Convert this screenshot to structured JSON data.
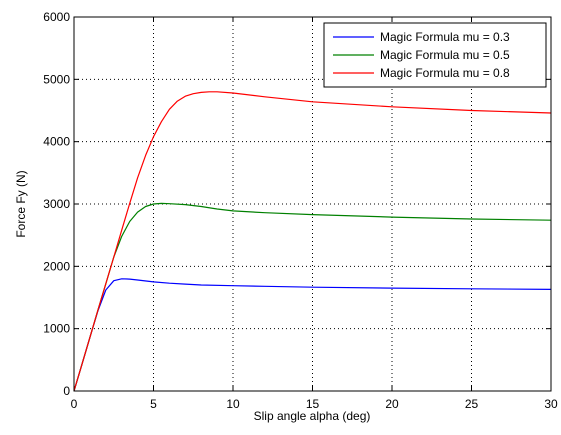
{
  "colors": {
    "background": "#ffffff",
    "axes": "#000000",
    "grid": "#000000"
  },
  "chart_data": {
    "type": "line",
    "title": "",
    "xlabel": "Slip angle alpha (deg)",
    "ylabel": "Force Fy (N)",
    "xlim": [
      0,
      30
    ],
    "ylim": [
      0,
      6000
    ],
    "xticks": [
      0,
      5,
      10,
      15,
      20,
      25,
      30
    ],
    "yticks": [
      0,
      1000,
      2000,
      3000,
      4000,
      5000,
      6000
    ],
    "xtick_labels": [
      "0",
      "5",
      "10",
      "15",
      "20",
      "25",
      "30"
    ],
    "ytick_labels": [
      "0",
      "1000",
      "2000",
      "3000",
      "4000",
      "5000",
      "6000"
    ],
    "grid": true,
    "grid_style": "dotted",
    "legend_position": "top-right",
    "series": [
      {
        "name": "Magic Formula mu = 0.3",
        "color": "#0000ff",
        "x": [
          0,
          0.5,
          1,
          1.5,
          2,
          2.5,
          3,
          3.5,
          4,
          5,
          6,
          7,
          8,
          10,
          12,
          15,
          20,
          25,
          30
        ],
        "y": [
          0,
          430,
          860,
          1280,
          1620,
          1770,
          1800,
          1795,
          1780,
          1750,
          1730,
          1715,
          1700,
          1690,
          1680,
          1665,
          1650,
          1640,
          1630
        ]
      },
      {
        "name": "Magic Formula mu = 0.5",
        "color": "#008000",
        "x": [
          0,
          0.5,
          1,
          1.5,
          2,
          2.5,
          3,
          3.5,
          4,
          4.5,
          5,
          5.5,
          6,
          7,
          8,
          9,
          10,
          12,
          15,
          20,
          25,
          30
        ],
        "y": [
          0,
          430,
          860,
          1290,
          1720,
          2150,
          2480,
          2720,
          2870,
          2960,
          3000,
          3010,
          3005,
          2990,
          2960,
          2920,
          2890,
          2860,
          2830,
          2790,
          2760,
          2740
        ]
      },
      {
        "name": "Magic Formula mu = 0.8",
        "color": "#ff0000",
        "x": [
          0,
          0.5,
          1,
          1.5,
          2,
          2.5,
          3,
          3.5,
          4,
          4.5,
          5,
          5.5,
          6,
          6.5,
          7,
          7.5,
          8,
          8.5,
          9,
          10,
          12,
          15,
          20,
          25,
          30
        ],
        "y": [
          0,
          430,
          860,
          1290,
          1720,
          2150,
          2580,
          3010,
          3420,
          3780,
          4080,
          4320,
          4520,
          4650,
          4730,
          4770,
          4790,
          4800,
          4800,
          4780,
          4720,
          4640,
          4560,
          4500,
          4460
        ]
      }
    ]
  }
}
